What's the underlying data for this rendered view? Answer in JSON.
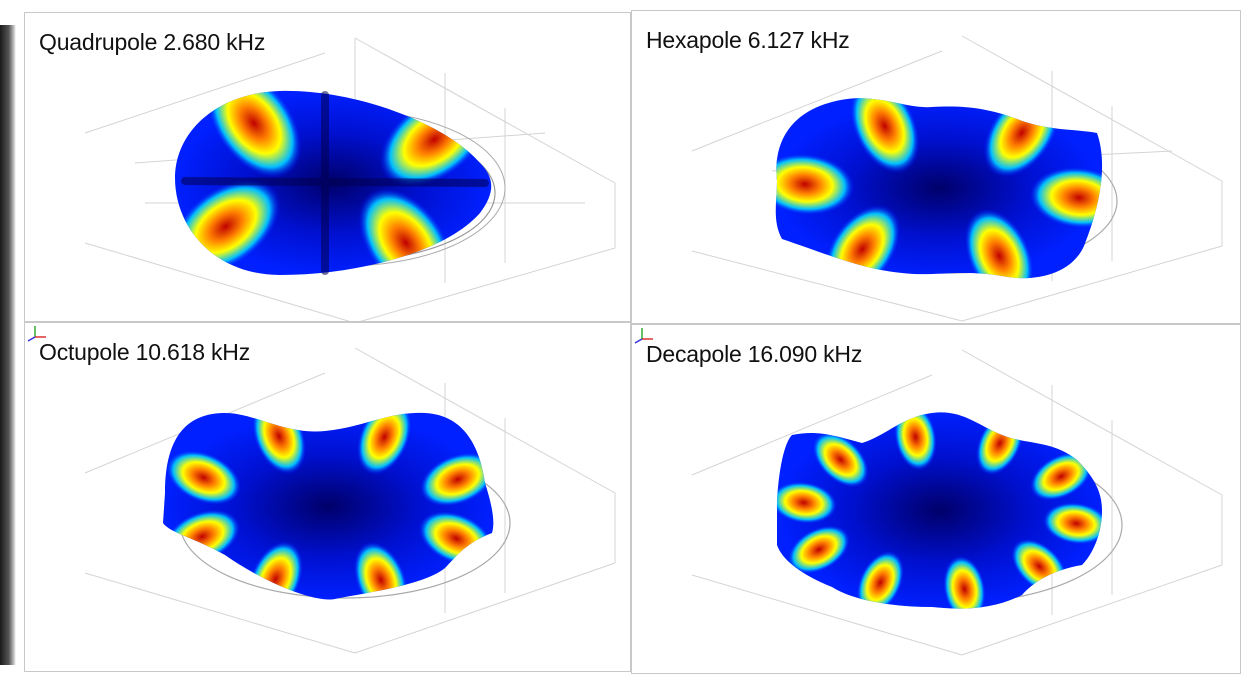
{
  "panels": [
    {
      "id": "p1",
      "mode": "quadrupole",
      "title": "Quadrupole 2.680 kHz",
      "lobes": 4,
      "has_triad": false
    },
    {
      "id": "p2",
      "mode": "hexapole",
      "title": "Hexapole 6.127 kHz",
      "lobes": 6,
      "has_triad": false
    },
    {
      "id": "p3",
      "mode": "octupole",
      "title": "Octupole 10.618 kHz",
      "lobes": 8,
      "has_triad": true
    },
    {
      "id": "p4",
      "mode": "decapole",
      "title": "Decapole 16.090 kHz",
      "lobes": 10,
      "has_triad": true
    }
  ],
  "colormap": [
    "#00008f",
    "#0000ff",
    "#00bfff",
    "#ffff00",
    "#ff8000",
    "#c00000"
  ],
  "frame_color": "#d4d4d4"
}
